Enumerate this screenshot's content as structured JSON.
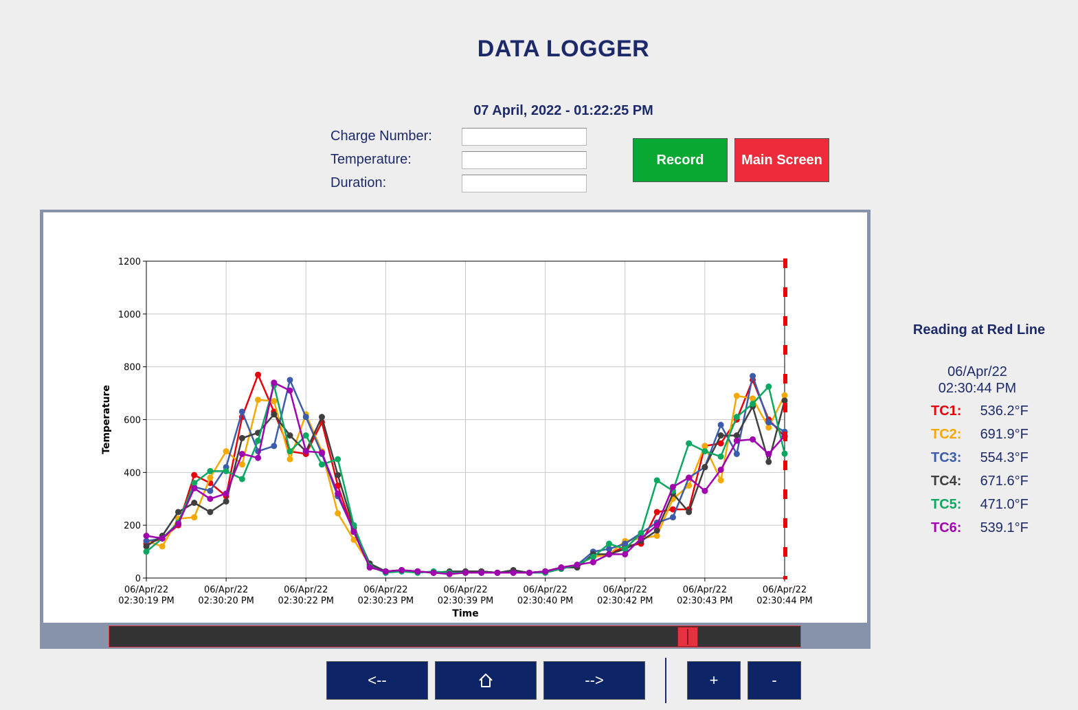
{
  "header": {
    "title": "DATA LOGGER",
    "datetime": "07 April, 2022 - 01:22:25 PM"
  },
  "form": {
    "charge_number_label": "Charge Number:",
    "temperature_label": "Temperature:",
    "duration_label": "Duration:",
    "charge_number_value": "",
    "temperature_value": "",
    "duration_value": ""
  },
  "buttons": {
    "record": "Record",
    "main_screen": "Main Screen",
    "record_color": "#08a833",
    "main_screen_color": "#ee2b3b"
  },
  "reading": {
    "title": "Reading at Red Line",
    "date": "06/Apr/22",
    "time": "02:30:44 PM",
    "channels": [
      {
        "label": "TC1:",
        "value": "536.2°F",
        "color": "#e8000b"
      },
      {
        "label": "TC2:",
        "value": "691.9°F",
        "color": "#f5a800"
      },
      {
        "label": "TC3:",
        "value": "554.3°F",
        "color": "#3b5bab"
      },
      {
        "label": "TC4:",
        "value": "671.6°F",
        "color": "#3f3f3f"
      },
      {
        "label": "TC5:",
        "value": "471.0°F",
        "color": "#0aa860"
      },
      {
        "label": "TC6:",
        "value": "539.1°F",
        "color": "#a000b0"
      }
    ]
  },
  "scrollbar": {
    "position": 0.84
  },
  "nav": {
    "prev": "<--",
    "home_icon": "home-icon",
    "next": "-->",
    "zoom_in": "+",
    "zoom_out": "-"
  },
  "chart_data": {
    "type": "line",
    "xlabel": "Time",
    "ylabel": "Temperature",
    "ylim": [
      0,
      1200
    ],
    "yticks": [
      0,
      200,
      400,
      600,
      800,
      1000,
      1200
    ],
    "xtick_labels": [
      [
        "06/Apr/22",
        "02:30:19 PM"
      ],
      [
        "06/Apr/22",
        "02:30:20 PM"
      ],
      [
        "06/Apr/22",
        "02:30:22 PM"
      ],
      [
        "06/Apr/22",
        "02:30:23 PM"
      ],
      [
        "06/Apr/22",
        "02:30:39 PM"
      ],
      [
        "06/Apr/22",
        "02:30:40 PM"
      ],
      [
        "06/Apr/22",
        "02:30:42 PM"
      ],
      [
        "06/Apr/22",
        "02:30:43 PM"
      ],
      [
        "06/Apr/22",
        "02:30:44 PM"
      ]
    ],
    "grid": true,
    "red_line_at_last_sample": true,
    "series": [
      {
        "color": "#e8000b",
        "values": [
          130,
          150,
          200,
          390,
          360,
          310,
          610,
          770,
          630,
          480,
          470,
          590,
          350,
          175,
          50,
          25,
          30,
          25,
          20,
          20,
          25,
          25,
          20,
          25,
          20,
          25,
          40,
          50,
          80,
          90,
          120,
          130,
          250,
          260,
          260,
          500,
          510,
          600,
          750,
          600,
          536
        ]
      },
      {
        "color": "#f5a800",
        "values": [
          140,
          120,
          225,
          230,
          380,
          480,
          430,
          675,
          670,
          450,
          620,
          480,
          245,
          145,
          50,
          25,
          30,
          25,
          20,
          20,
          25,
          25,
          20,
          25,
          20,
          25,
          35,
          50,
          80,
          90,
          140,
          150,
          160,
          300,
          350,
          500,
          370,
          690,
          680,
          570,
          692
        ]
      },
      {
        "color": "#3b5bab",
        "values": [
          140,
          150,
          205,
          345,
          330,
          420,
          630,
          480,
          500,
          750,
          610,
          470,
          310,
          180,
          50,
          25,
          30,
          25,
          20,
          20,
          25,
          25,
          20,
          25,
          20,
          25,
          35,
          50,
          100,
          110,
          130,
          170,
          210,
          230,
          380,
          420,
          580,
          470,
          765,
          590,
          554
        ]
      },
      {
        "color": "#3f3f3f",
        "values": [
          120,
          160,
          250,
          285,
          250,
          290,
          530,
          550,
          620,
          540,
          480,
          610,
          390,
          190,
          55,
          25,
          30,
          25,
          20,
          25,
          25,
          25,
          20,
          30,
          20,
          25,
          40,
          40,
          90,
          90,
          110,
          140,
          180,
          320,
          250,
          420,
          540,
          540,
          650,
          440,
          672
        ]
      },
      {
        "color": "#0aa860",
        "values": [
          100,
          150,
          210,
          360,
          405,
          405,
          375,
          520,
          730,
          480,
          540,
          430,
          450,
          200,
          45,
          20,
          25,
          20,
          25,
          20,
          20,
          20,
          20,
          20,
          20,
          20,
          35,
          50,
          80,
          130,
          110,
          170,
          370,
          330,
          510,
          480,
          460,
          610,
          660,
          725,
          471
        ]
      },
      {
        "color": "#a000b0",
        "values": [
          160,
          150,
          205,
          340,
          300,
          320,
          470,
          455,
          740,
          710,
          480,
          475,
          320,
          175,
          40,
          25,
          30,
          25,
          20,
          15,
          20,
          20,
          20,
          20,
          20,
          25,
          40,
          50,
          60,
          90,
          90,
          150,
          200,
          345,
          380,
          330,
          410,
          520,
          525,
          470,
          539
        ]
      }
    ]
  }
}
